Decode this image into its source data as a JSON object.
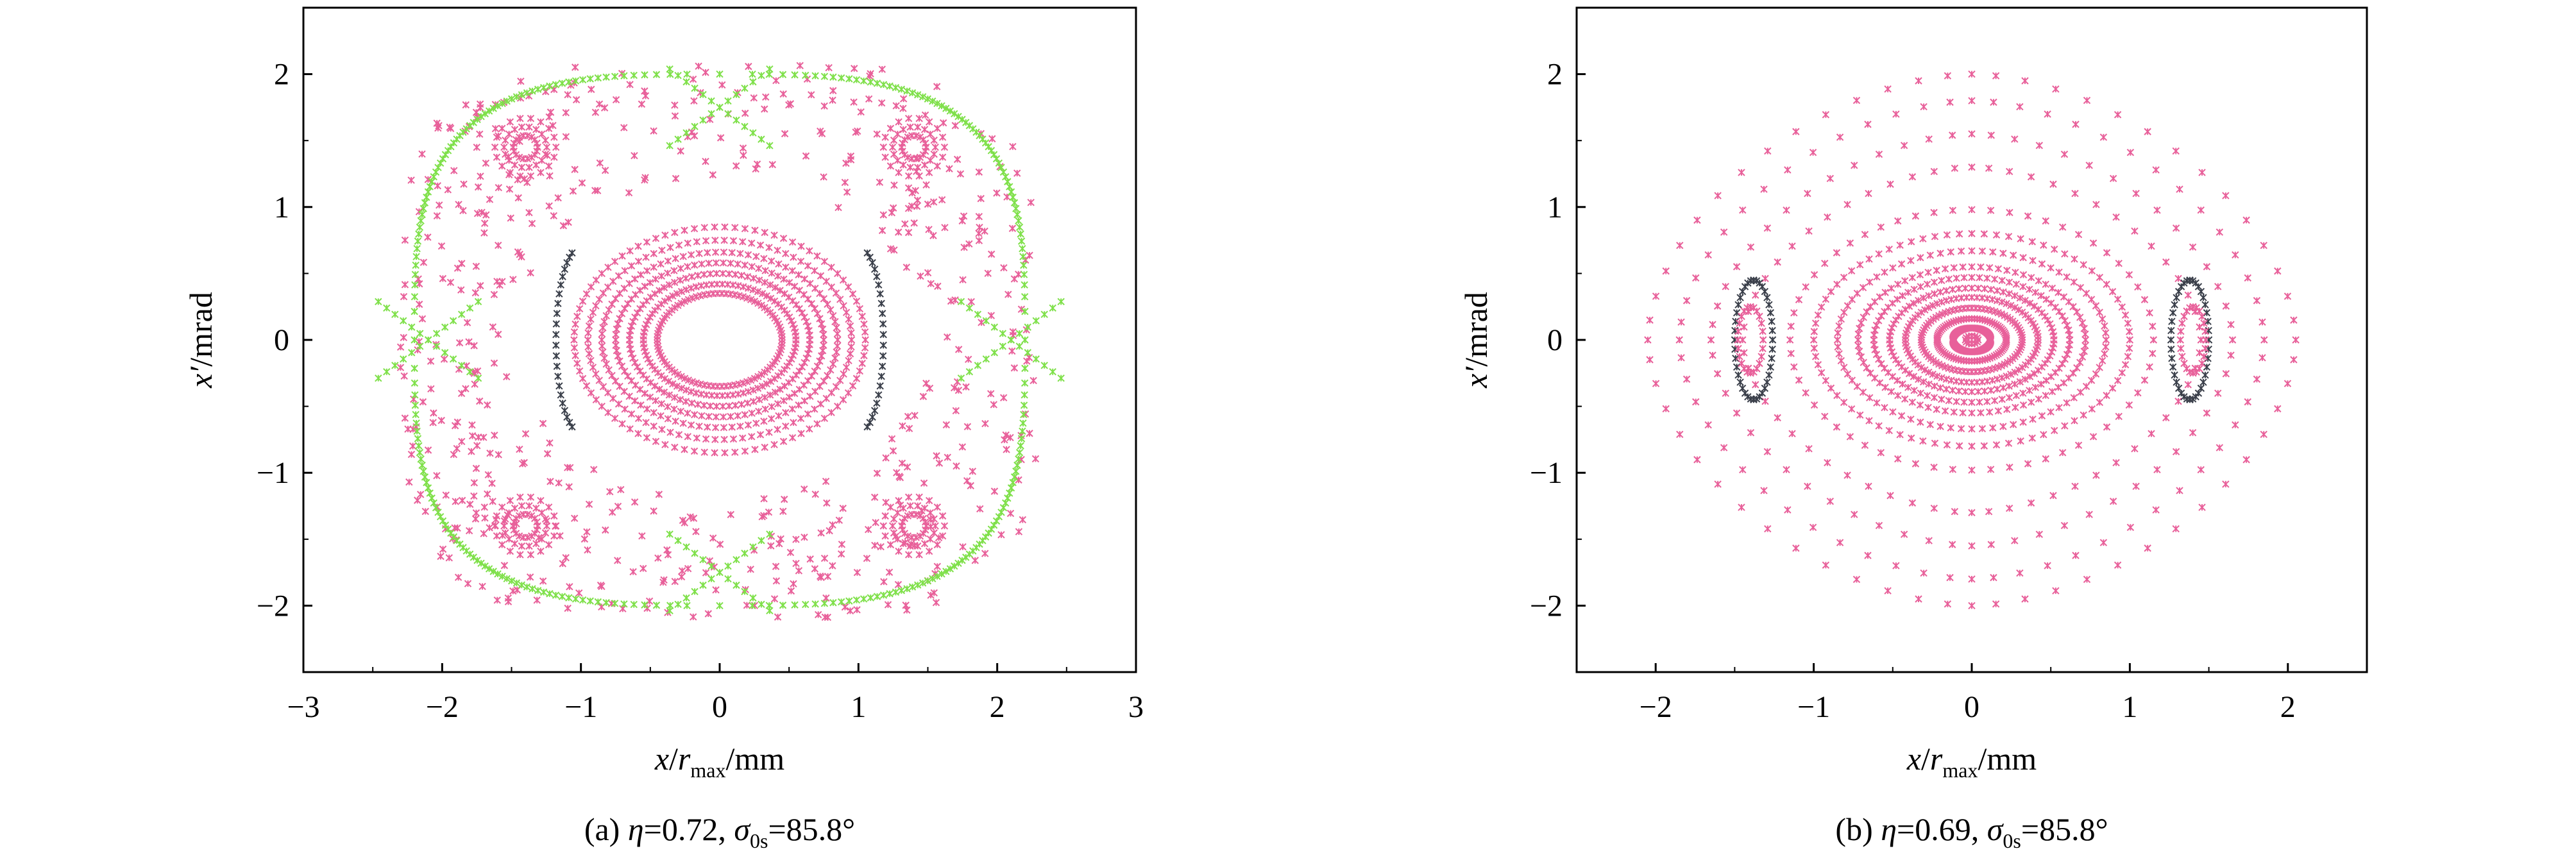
{
  "colors": {
    "pink": "#e8609a",
    "green": "#7fe04a",
    "dark": "#3a3f4a"
  },
  "chart_data": [
    {
      "type": "scatter",
      "panel": "a",
      "caption": {
        "prefix": "(a) ",
        "eta_sym": "η",
        "eta_val": "=0.72, ",
        "sigma_sym": "σ",
        "sigma_sub": "0s",
        "sigma_val": "=85.8°"
      },
      "xlabel": {
        "var": "x",
        "div": "/",
        "r": "r",
        "sub": "max",
        "unit": "/mm"
      },
      "ylabel": {
        "var": "x′",
        "unit": "/mrad"
      },
      "xlim": [
        -3,
        3
      ],
      "ylim": [
        -2.5,
        2.5
      ],
      "xticks": [
        -3,
        -2,
        -1,
        0,
        1,
        2,
        3
      ],
      "yticks": [
        -2,
        -1,
        0,
        1,
        2
      ],
      "xtick_labels": [
        "−3",
        "−2",
        "−1",
        "0",
        "1",
        "2",
        "3"
      ],
      "ytick_labels": [
        "−2",
        "−1",
        "0",
        "1",
        "2"
      ],
      "series": [
        {
          "color": "pink",
          "ellipses": [
            [
              0.45,
              0.35
            ],
            [
              0.55,
              0.42
            ],
            [
              0.65,
              0.5
            ],
            [
              0.75,
              0.58
            ],
            [
              0.85,
              0.66
            ],
            [
              0.95,
              0.75
            ],
            [
              1.05,
              0.85
            ]
          ],
          "islands": [
            [
              -1.4,
              1.45,
              0.22,
              0.22
            ],
            [
              1.4,
              1.45,
              0.22,
              0.22
            ],
            [
              -1.4,
              -1.4,
              0.22,
              0.22
            ],
            [
              1.4,
              -1.4,
              0.22,
              0.22
            ]
          ],
          "chaotic": [
            [
              -2.35,
              -2.1,
              2.35,
              2.1
            ]
          ]
        },
        {
          "color": "green",
          "separatrix": [
            [
              -2.1,
              0
            ],
            [
              2.1,
              0
            ],
            [
              0,
              1.75
            ],
            [
              0,
              -1.75
            ]
          ]
        },
        {
          "color": "dark",
          "arcs": [
            [
              -1.0,
              0
            ],
            [
              1.0,
              0
            ]
          ]
        }
      ]
    },
    {
      "type": "scatter",
      "panel": "b",
      "caption": {
        "prefix": "(b) ",
        "eta_sym": "η",
        "eta_val": "=0.69, ",
        "sigma_sym": "σ",
        "sigma_sub": "0s",
        "sigma_val": "=85.8°"
      },
      "xlabel": {
        "var": "x",
        "div": "/",
        "r": "r",
        "sub": "max",
        "unit": "/mm"
      },
      "ylabel": {
        "var": "x′",
        "unit": "/mrad"
      },
      "xlim": [
        -2.5,
        2.5
      ],
      "ylim": [
        -2.5,
        2.5
      ],
      "xticks": [
        -2,
        -1,
        0,
        1,
        2
      ],
      "yticks": [
        -2,
        -1,
        0,
        1,
        2
      ],
      "xtick_labels": [
        "−2",
        "−1",
        "0",
        "1",
        "2"
      ],
      "ytick_labels": [
        "−2",
        "−1",
        "0",
        "1",
        "2"
      ],
      "series": [
        {
          "color": "pink",
          "ellipses": [
            [
              0.04,
              0.03
            ],
            [
              0.12,
              0.09
            ],
            [
              0.22,
              0.16
            ],
            [
              0.32,
              0.24
            ],
            [
              0.42,
              0.32
            ],
            [
              0.52,
              0.39
            ],
            [
              0.62,
              0.47
            ],
            [
              0.72,
              0.55
            ],
            [
              0.85,
              0.67
            ],
            [
              1.0,
              0.8
            ],
            [
              1.15,
              0.98
            ],
            [
              1.45,
              1.3
            ],
            [
              1.65,
              1.55
            ],
            [
              1.85,
              1.8
            ],
            [
              2.05,
              2.0
            ]
          ],
          "islands": [
            [
              -1.4,
              0,
              0.08,
              0.25
            ],
            [
              1.4,
              0,
              0.08,
              0.25
            ]
          ]
        },
        {
          "color": "dark",
          "islands": [
            [
              -1.38,
              0,
              0.12,
              0.45
            ],
            [
              1.38,
              0,
              0.12,
              0.45
            ]
          ]
        }
      ]
    }
  ]
}
